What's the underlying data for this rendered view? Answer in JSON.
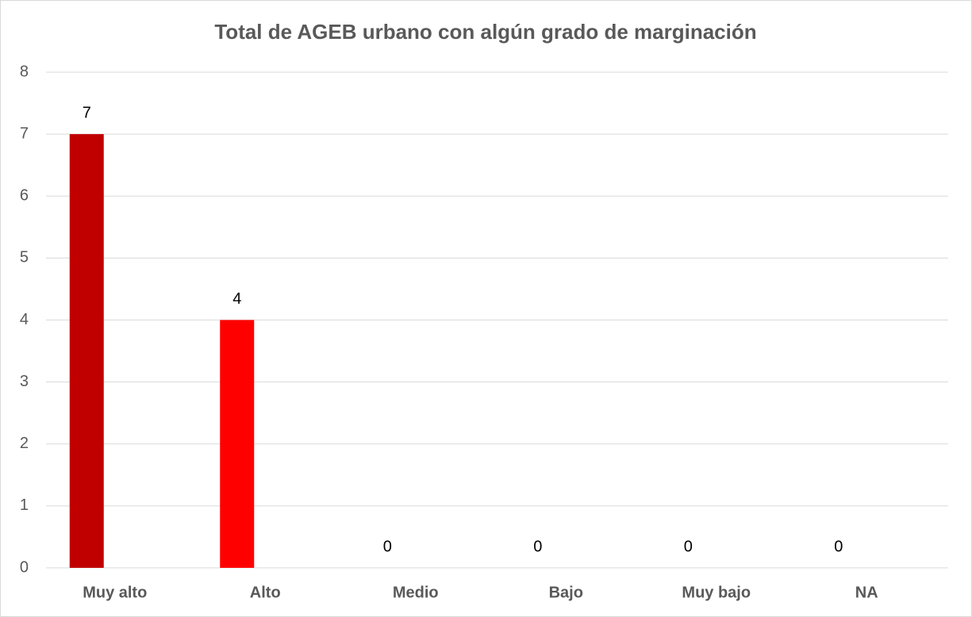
{
  "chart_data": {
    "type": "bar",
    "title": "Total de AGEB urbano con algún grado de marginación",
    "categories": [
      "Muy alto",
      "Alto",
      "Medio",
      "Bajo",
      "Muy bajo",
      "NA"
    ],
    "values": [
      7,
      4,
      0,
      0,
      0,
      0
    ],
    "colors": [
      "#c00000",
      "#ff0000",
      "#ffc000",
      "#92d050",
      "#00b050",
      "#7f7f7f"
    ],
    "ylim": [
      0,
      8
    ],
    "yticks": [
      0,
      1,
      2,
      3,
      4,
      5,
      6,
      7,
      8
    ],
    "grid": true
  }
}
